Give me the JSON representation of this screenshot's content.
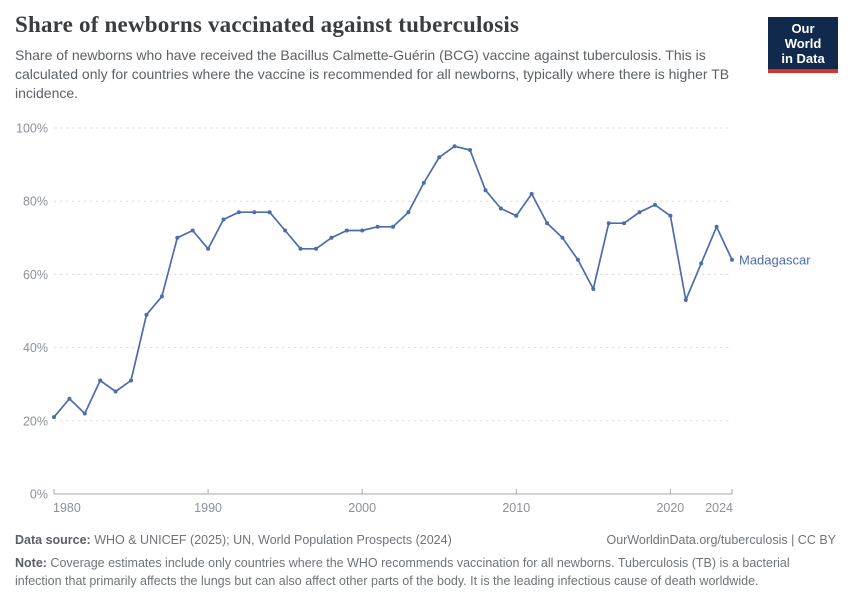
{
  "header": {
    "title": "Share of newborns vaccinated against tuberculosis",
    "subtitle": "Share of newborns who have received the Bacillus Calmette-Guérin (BCG) vaccine against tuberculosis. This is calculated only for countries where the vaccine is recommended for all newborns, typically where there is higher TB incidence.",
    "logo": {
      "line1": "Our World",
      "line2": "in Data"
    }
  },
  "chart_data": {
    "type": "line",
    "title": "Share of newborns vaccinated against tuberculosis",
    "xlabel": "",
    "ylabel": "",
    "x": [
      1980,
      1981,
      1982,
      1983,
      1984,
      1985,
      1986,
      1987,
      1988,
      1989,
      1990,
      1991,
      1992,
      1993,
      1994,
      1995,
      1996,
      1997,
      1998,
      1999,
      2000,
      2001,
      2002,
      2003,
      2004,
      2005,
      2006,
      2007,
      2008,
      2009,
      2010,
      2011,
      2012,
      2013,
      2014,
      2015,
      2016,
      2017,
      2018,
      2019,
      2020,
      2021,
      2022,
      2023,
      2024
    ],
    "series": [
      {
        "name": "Madagascar",
        "color": "#4d6cab",
        "values": [
          21,
          26,
          22,
          31,
          28,
          31,
          49,
          54,
          70,
          72,
          67,
          75,
          77,
          77,
          77,
          72,
          67,
          67,
          70,
          72,
          72,
          73,
          73,
          77,
          85,
          92,
          95,
          94,
          83,
          78,
          76,
          82,
          74,
          70,
          64,
          56,
          74,
          74,
          77,
          79,
          76,
          53,
          63,
          73,
          64
        ]
      }
    ],
    "ylim": [
      0,
      100
    ],
    "yticks": [
      0,
      20,
      40,
      60,
      80,
      100
    ],
    "ytick_suffix": "%",
    "xticks": [
      1980,
      1990,
      2000,
      2010,
      2020,
      2024
    ],
    "grid": "horizontal-dashed",
    "legend_position": "end-of-line-label",
    "end_label": "Madagascar"
  },
  "footer": {
    "datasource_label": "Data source:",
    "datasource": " WHO & UNICEF (2025); UN, World Population Prospects (2024)",
    "link": "OurWorldinData.org/tuberculosis | CC BY",
    "note_label": "Note:",
    "note": " Coverage estimates include only countries where the WHO recommends vaccination for all newborns. Tuberculosis (TB) is a bacterial infection that primarily affects the lungs but can also affect other parts of the body. It is the leading infectious cause of death worldwide."
  },
  "colors": {
    "line": "#4d6cab",
    "logo_navy": "#12294e",
    "logo_red": "#d0342c",
    "gridline": "#dadce0",
    "axis": "#a3a7ab",
    "tick_text": "#8b9198"
  }
}
